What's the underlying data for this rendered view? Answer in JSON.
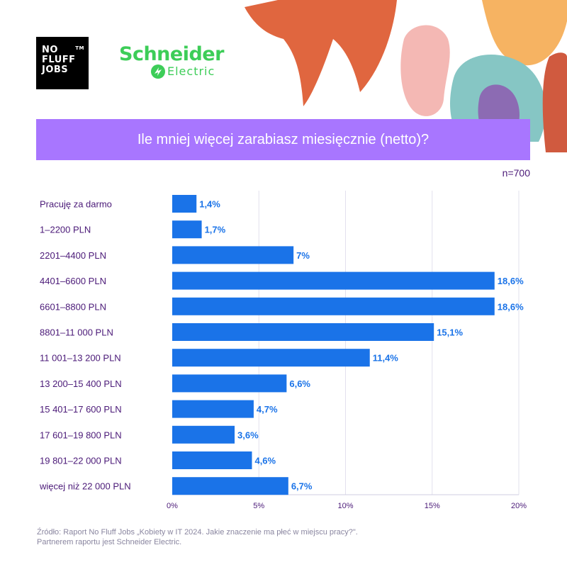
{
  "logos": {
    "nofluff": [
      "NO",
      "FLUFF",
      "JOBS"
    ],
    "nofluff_tm": "TM",
    "schneider_line1": "Schneider",
    "schneider_line2": "Electric"
  },
  "header": {
    "title": "Ile mniej więcej zarabiasz miesięcznie (netto)?",
    "sample": "n=700"
  },
  "colors": {
    "banner": "#a876ff",
    "bar": "#1a73e8",
    "label_text": "#4b1a78",
    "value_text": "#1a73e8",
    "grid": "#e2e0ee"
  },
  "chart_data": {
    "type": "bar",
    "orientation": "horizontal",
    "categories": [
      "Pracuję za darmo",
      "1–2200 PLN",
      "2201–4400 PLN",
      "4401–6600 PLN",
      "6601–8800 PLN",
      "8801–11 000 PLN",
      "11 001–13 200 PLN",
      "13 200–15 400 PLN",
      "15 401–17 600 PLN",
      "17 601–19 800 PLN",
      "19 801–22 000 PLN",
      "więcej niż 22 000 PLN"
    ],
    "values": [
      1.4,
      1.7,
      7,
      18.6,
      18.6,
      15.1,
      11.4,
      6.6,
      4.7,
      3.6,
      4.6,
      6.7
    ],
    "value_labels": [
      "1,4%",
      "1,7%",
      "7%",
      "18,6%",
      "18,6%",
      "15,1%",
      "11,4%",
      "6,6%",
      "4,7%",
      "3,6%",
      "4,6%",
      "6,7%"
    ],
    "xlim": [
      0,
      20
    ],
    "xticks": [
      "0%",
      "5%",
      "10%",
      "15%",
      "20%"
    ],
    "grid": true
  },
  "footer": {
    "source": "Źródło: Raport No Fluff Jobs „Kobiety w IT 2024. Jakie znaczenie ma płeć w miejscu pracy?\".",
    "partner": "Partnerem raportu jest Schneider Electric."
  }
}
